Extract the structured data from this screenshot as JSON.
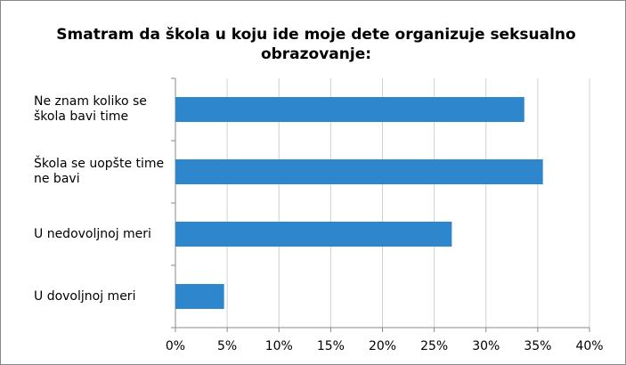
{
  "chart_data": {
    "type": "bar",
    "orientation": "horizontal",
    "title": "Smatram da škola u koju ide moje dete organizuje seksualno obrazovanje:",
    "categories": [
      "Ne znam koliko se škola bavi time",
      "Škola se uopšte time ne bavi",
      "U nedovoljnoj meri",
      "U dovoljnoj meri"
    ],
    "values": [
      33.7,
      35.5,
      26.7,
      4.7
    ],
    "color": "#2e86cc",
    "xlim": [
      0,
      40
    ],
    "xticks": [
      {
        "value": 0,
        "label": "0%"
      },
      {
        "value": 5,
        "label": "5%"
      },
      {
        "value": 10,
        "label": "10%"
      },
      {
        "value": 15,
        "label": "15%"
      },
      {
        "value": 20,
        "label": "20%"
      },
      {
        "value": 25,
        "label": "25%"
      },
      {
        "value": 30,
        "label": "30%"
      },
      {
        "value": 35,
        "label": "35%"
      },
      {
        "value": 40,
        "label": "40%"
      }
    ],
    "grid": true
  }
}
